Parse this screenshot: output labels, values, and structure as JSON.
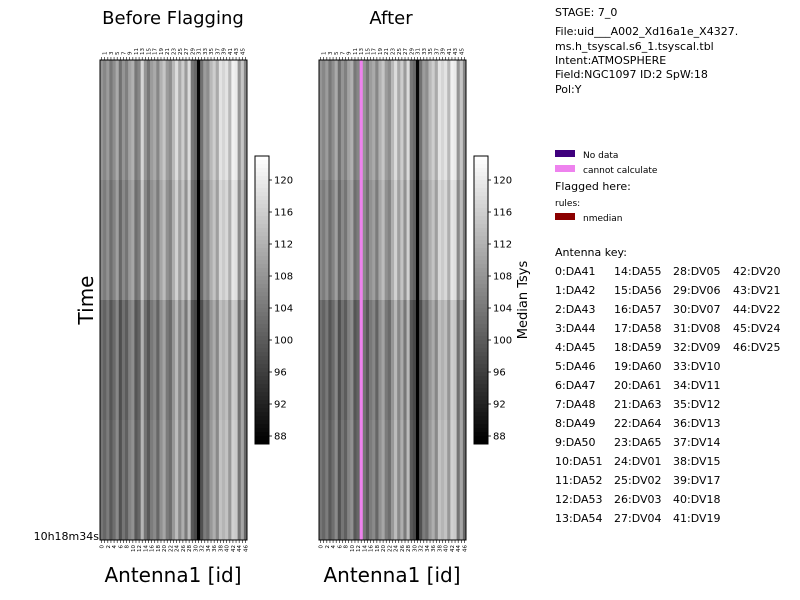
{
  "chart_data": [
    {
      "type": "heatmap",
      "title": "Before Flagging",
      "xlabel": "Antenna1 [id]",
      "ylabel": "Time",
      "y_tick_label": "10h18m34s",
      "x_top_ticks": [
        "1",
        "3",
        "5",
        "7",
        "9",
        "11",
        "13",
        "15",
        "17",
        "19",
        "21",
        "23",
        "25",
        "27",
        "29",
        "31",
        "33",
        "35",
        "37",
        "39",
        "41",
        "43",
        "45"
      ],
      "x_bottom_ticks": [
        "0",
        "2",
        "4",
        "6",
        "8",
        "10",
        "12",
        "14",
        "16",
        "18",
        "20",
        "22",
        "24",
        "26",
        "28",
        "30",
        "32",
        "34",
        "36",
        "38",
        "40",
        "42",
        "44",
        "46"
      ],
      "antennas": 47,
      "time_rows": 4,
      "colorscale": "grayscale",
      "flagged_antennas": [],
      "values_base": [
        108,
        106,
        109,
        104,
        107,
        111,
        103,
        108,
        105,
        110,
        112,
        104,
        106,
        117,
        108,
        104,
        109,
        111,
        106,
        112,
        115,
        109,
        107,
        113,
        118,
        111,
        116,
        109,
        118,
        104,
        102,
        88,
        103,
        109,
        107,
        113,
        116,
        111,
        119,
        117,
        119,
        113,
        121,
        120,
        108,
        115,
        106
      ],
      "row_offsets": [
        0,
        -1.5,
        -5,
        -4.5
      ]
    },
    {
      "type": "heatmap",
      "title": "After",
      "xlabel": "Antenna1 [id]",
      "x_top_ticks": [
        "1",
        "3",
        "5",
        "7",
        "9",
        "11",
        "13",
        "15",
        "17",
        "19",
        "21",
        "23",
        "25",
        "27",
        "29",
        "31",
        "33",
        "35",
        "37",
        "39",
        "41",
        "43",
        "45"
      ],
      "x_bottom_ticks": [
        "0",
        "2",
        "4",
        "6",
        "8",
        "10",
        "12",
        "14",
        "16",
        "18",
        "20",
        "22",
        "24",
        "26",
        "28",
        "30",
        "32",
        "34",
        "36",
        "38",
        "40",
        "42",
        "44",
        "46"
      ],
      "antennas": 47,
      "time_rows": 4,
      "colorscale": "grayscale",
      "flagged_antennas": [
        13
      ],
      "flag_color": "#ee82ee",
      "values_base": [
        108,
        106,
        109,
        104,
        107,
        111,
        103,
        108,
        105,
        110,
        112,
        104,
        106,
        117,
        108,
        104,
        109,
        111,
        106,
        112,
        115,
        109,
        107,
        113,
        118,
        111,
        116,
        109,
        118,
        104,
        102,
        88,
        103,
        109,
        107,
        113,
        116,
        111,
        119,
        117,
        119,
        113,
        121,
        120,
        108,
        115,
        106
      ],
      "row_offsets": [
        0,
        -1.5,
        -5,
        -4.5
      ]
    }
  ],
  "colorbars": [
    {
      "label": "",
      "range": [
        87,
        123
      ],
      "ticks": [
        "88",
        "92",
        "96",
        "100",
        "104",
        "108",
        "112",
        "116",
        "120"
      ]
    },
    {
      "label": "Median Tsys",
      "range": [
        87,
        123
      ],
      "ticks": [
        "88",
        "92",
        "96",
        "100",
        "104",
        "108",
        "112",
        "116",
        "120"
      ]
    }
  ],
  "info": {
    "stage": "STAGE: 7_0",
    "file_line1": "File:uid___A002_Xd16a1e_X4327.",
    "file_line2": "ms.h_tsyscal.s6_1.tsyscal.tbl",
    "intent": "Intent:ATMOSPHERE",
    "field": "Field:NGC1097 ID:2 SpW:18",
    "pol": "Pol:Y"
  },
  "legend": {
    "no_data_label": "No data",
    "no_data_color": "#3f007d",
    "cannot_calc_label": "cannot calculate",
    "cannot_calc_color": "#ee82ee",
    "flagged_here": "Flagged here:",
    "rules": "rules:",
    "nmedian_label": "nmedian",
    "nmedian_color": "#8b0000"
  },
  "antenna_key": {
    "title": "Antenna key:",
    "rows": [
      [
        "0:DA41",
        "14:DA55",
        "28:DV05",
        "42:DV20"
      ],
      [
        "1:DA42",
        "15:DA56",
        "29:DV06",
        "43:DV21"
      ],
      [
        "2:DA43",
        "16:DA57",
        "30:DV07",
        "44:DV22"
      ],
      [
        "3:DA44",
        "17:DA58",
        "31:DV08",
        "45:DV24"
      ],
      [
        "4:DA45",
        "18:DA59",
        "32:DV09",
        "46:DV25"
      ],
      [
        "5:DA46",
        "19:DA60",
        "33:DV10",
        ""
      ],
      [
        "6:DA47",
        "20:DA61",
        "34:DV11",
        ""
      ],
      [
        "7:DA48",
        "21:DA63",
        "35:DV12",
        ""
      ],
      [
        "8:DA49",
        "22:DA64",
        "36:DV13",
        ""
      ],
      [
        "9:DA50",
        "23:DA65",
        "37:DV14",
        ""
      ],
      [
        "10:DA51",
        "24:DV01",
        "38:DV15",
        ""
      ],
      [
        "11:DA52",
        "25:DV02",
        "39:DV17",
        ""
      ],
      [
        "12:DA53",
        "26:DV03",
        "40:DV18",
        ""
      ],
      [
        "13:DA54",
        "27:DV04",
        "41:DV19",
        ""
      ]
    ]
  }
}
